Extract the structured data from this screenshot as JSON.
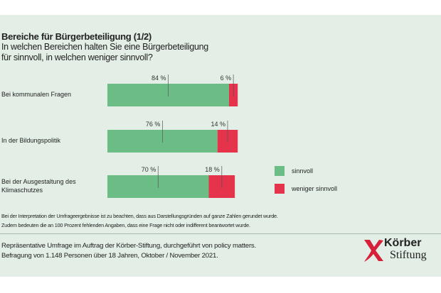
{
  "chart_data": {
    "type": "bar",
    "stacked": true,
    "orientation": "horizontal",
    "title": "Bereiche für Bürgerbeteiligung (1/2)",
    "subtitle": [
      "In welchen Bereichen halten Sie eine Bürgerbeteiligung",
      "für sinnvoll, in welchen weniger sinnvoll?"
    ],
    "categories": [
      [
        "Bei kommunalen Fragen"
      ],
      [
        "In der Bildungspolitik"
      ],
      [
        "Bei der Ausgestaltung des",
        "Klimaschutzes"
      ]
    ],
    "series": [
      {
        "name": "sinnvoll",
        "color": "#6cbd85",
        "values": [
          84,
          76,
          70
        ],
        "labels": [
          "84 %",
          "76 %",
          "70 %"
        ]
      },
      {
        "name": "weniger sinnvoll",
        "color": "#e5334b",
        "values": [
          6,
          14,
          18
        ],
        "labels": [
          "6 %",
          "14 %",
          "18 %"
        ]
      }
    ],
    "xlim": [
      0,
      100
    ],
    "grid": false,
    "legend": "right"
  },
  "notes": [
    "Bei der Interpretation der Umfrageergebnisse ist zu beachten, dass aus Darstellungsgründen auf ganze Zahlen gerundet wurde.",
    "Zudem bedeuten die an 100 Prozent fehlenden Angaben, dass eine Frage nicht oder indifferent beantwortet wurde."
  ],
  "source": [
    "Repräsentative Umfrage im Auftrag der Körber-Stiftung, durchgeführt von policy matters.",
    "Befragung von 1.148 Personen über 18 Jahren, Oktober / November 2021."
  ],
  "logo": {
    "line1": "Körber",
    "line2": "Stiftung",
    "color": "#d5213a"
  }
}
